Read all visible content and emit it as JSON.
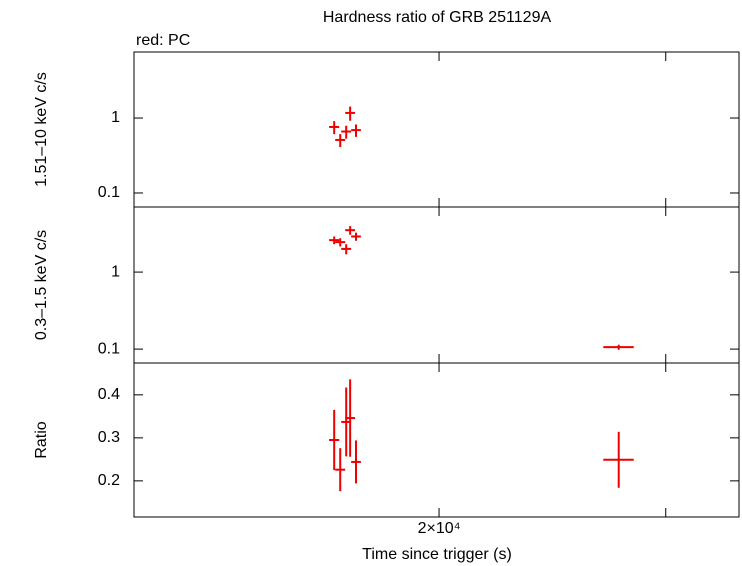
{
  "chart_data": [
    {
      "type": "scatter",
      "title": "Hardness ratio of GRB 251129A",
      "subtitle": "red: PC",
      "ylabel": "1.51–10 keV c/s",
      "log_x": true,
      "log_y": true,
      "xlim": [
        11590,
        34200
      ],
      "xticks": [
        {
          "value": 20000,
          "label": "2×10⁴"
        }
      ],
      "xminorticks": [
        30000
      ],
      "ylim": [
        0.065,
        7.6
      ],
      "yticks": [
        0.1,
        1
      ],
      "series": [
        {
          "color": "#ee0000",
          "x": [
            16580,
            16760,
            16940,
            17060,
            17240
          ],
          "xerr": [
            150,
            150,
            150,
            150,
            150
          ],
          "values": [
            0.76,
            0.51,
            0.66,
            1.17,
            0.69
          ],
          "yerr": [
            0.15,
            0.1,
            0.13,
            0.25,
            0.13
          ]
        }
      ]
    },
    {
      "type": "scatter",
      "ylabel": "0.3–1.5 keV c/s",
      "log_x": true,
      "log_y": true,
      "xlim": [
        11590,
        34200
      ],
      "xticks": [
        {
          "value": 20000,
          "label": "2×10⁴"
        }
      ],
      "xminorticks": [
        30000
      ],
      "ylim": [
        0.066,
        7.0
      ],
      "yticks": [
        0.1,
        1
      ],
      "series": [
        {
          "color": "#ee0000",
          "x": [
            16580,
            16760,
            16940,
            17060,
            17240,
            27580
          ],
          "xerr": [
            150,
            150,
            150,
            150,
            150,
            750
          ],
          "values": [
            2.6,
            2.45,
            2.0,
            3.5,
            2.9,
            0.106
          ],
          "yerr": [
            0.3,
            0.3,
            0.3,
            0.45,
            0.35,
            0.008
          ]
        }
      ]
    },
    {
      "type": "scatter",
      "ylabel": "Ratio",
      "xlabel": "Time since trigger (s)",
      "log_x": true,
      "log_y": false,
      "xlim": [
        11590,
        34200
      ],
      "xticks": [
        {
          "value": 20000,
          "label": "2×10⁴"
        }
      ],
      "xminorticks": [
        30000
      ],
      "ylim": [
        0.116,
        0.474
      ],
      "yticks": [
        0.2,
        0.3,
        0.4
      ],
      "series": [
        {
          "color": "#ee0000",
          "x": [
            16580,
            16760,
            16940,
            17060,
            17240,
            27580
          ],
          "xerr": [
            150,
            150,
            150,
            150,
            150,
            750
          ],
          "values": [
            0.295,
            0.226,
            0.337,
            0.346,
            0.244,
            0.249
          ],
          "yerr": [
            0.07,
            0.05,
            0.08,
            0.09,
            0.05,
            0.065
          ]
        }
      ]
    }
  ]
}
